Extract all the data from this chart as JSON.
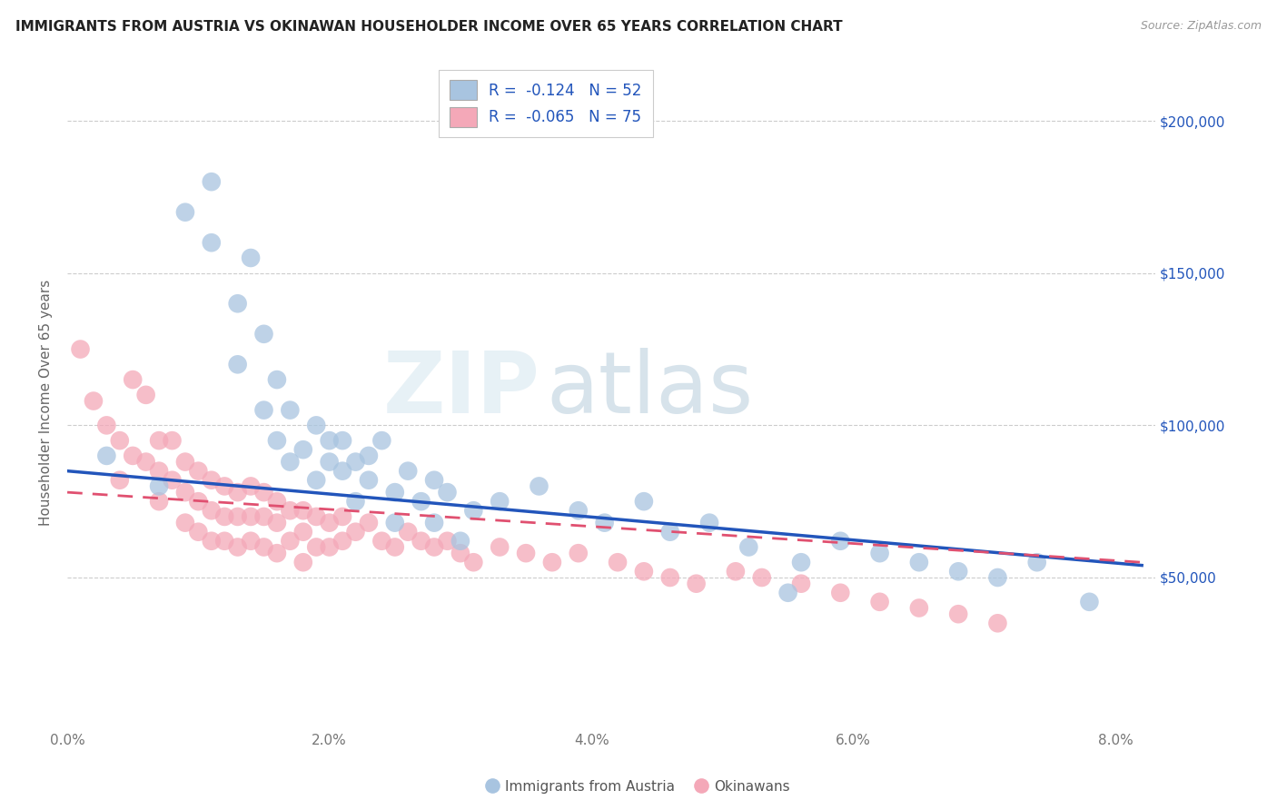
{
  "title": "IMMIGRANTS FROM AUSTRIA VS OKINAWAN HOUSEHOLDER INCOME OVER 65 YEARS CORRELATION CHART",
  "source": "Source: ZipAtlas.com",
  "ylabel": "Householder Income Over 65 years",
  "legend_label1": "R =  -0.124   N = 52",
  "legend_label2": "R =  -0.065   N = 75",
  "legend_name1": "Immigrants from Austria",
  "legend_name2": "Okinawans",
  "color1": "#a8c4e0",
  "color2": "#f4a8b8",
  "line_color1": "#2255bb",
  "line_color2": "#e05070",
  "y_ticks": [
    50000,
    100000,
    150000,
    200000
  ],
  "y_tick_labels": [
    "$50,000",
    "$100,000",
    "$150,000",
    "$200,000"
  ],
  "ylim": [
    0,
    215000
  ],
  "xlim": [
    0.0,
    0.083
  ],
  "background_color": "#ffffff",
  "watermark_zip": "ZIP",
  "watermark_atlas": "atlas",
  "blue_scatter_x": [
    0.003,
    0.007,
    0.009,
    0.011,
    0.011,
    0.013,
    0.013,
    0.014,
    0.015,
    0.015,
    0.016,
    0.016,
    0.017,
    0.017,
    0.018,
    0.019,
    0.019,
    0.02,
    0.02,
    0.021,
    0.021,
    0.022,
    0.022,
    0.023,
    0.023,
    0.024,
    0.025,
    0.025,
    0.026,
    0.027,
    0.028,
    0.028,
    0.029,
    0.03,
    0.031,
    0.033,
    0.036,
    0.039,
    0.041,
    0.044,
    0.046,
    0.049,
    0.052,
    0.055,
    0.056,
    0.059,
    0.062,
    0.065,
    0.068,
    0.071,
    0.074,
    0.078
  ],
  "blue_scatter_y": [
    90000,
    80000,
    170000,
    180000,
    160000,
    140000,
    120000,
    155000,
    105000,
    130000,
    115000,
    95000,
    88000,
    105000,
    92000,
    82000,
    100000,
    95000,
    88000,
    85000,
    95000,
    88000,
    75000,
    90000,
    82000,
    95000,
    78000,
    68000,
    85000,
    75000,
    82000,
    68000,
    78000,
    62000,
    72000,
    75000,
    80000,
    72000,
    68000,
    75000,
    65000,
    68000,
    60000,
    45000,
    55000,
    62000,
    58000,
    55000,
    52000,
    50000,
    55000,
    42000
  ],
  "pink_scatter_x": [
    0.001,
    0.002,
    0.003,
    0.004,
    0.004,
    0.005,
    0.005,
    0.006,
    0.006,
    0.007,
    0.007,
    0.007,
    0.008,
    0.008,
    0.009,
    0.009,
    0.009,
    0.01,
    0.01,
    0.01,
    0.011,
    0.011,
    0.011,
    0.012,
    0.012,
    0.012,
    0.013,
    0.013,
    0.013,
    0.014,
    0.014,
    0.014,
    0.015,
    0.015,
    0.015,
    0.016,
    0.016,
    0.016,
    0.017,
    0.017,
    0.018,
    0.018,
    0.018,
    0.019,
    0.019,
    0.02,
    0.02,
    0.021,
    0.021,
    0.022,
    0.023,
    0.024,
    0.025,
    0.026,
    0.027,
    0.028,
    0.029,
    0.03,
    0.031,
    0.033,
    0.035,
    0.037,
    0.039,
    0.042,
    0.044,
    0.046,
    0.048,
    0.051,
    0.053,
    0.056,
    0.059,
    0.062,
    0.065,
    0.068,
    0.071
  ],
  "pink_scatter_y": [
    125000,
    108000,
    100000,
    95000,
    82000,
    115000,
    90000,
    110000,
    88000,
    95000,
    85000,
    75000,
    95000,
    82000,
    88000,
    78000,
    68000,
    85000,
    75000,
    65000,
    82000,
    72000,
    62000,
    80000,
    70000,
    62000,
    78000,
    70000,
    60000,
    80000,
    70000,
    62000,
    78000,
    70000,
    60000,
    75000,
    68000,
    58000,
    72000,
    62000,
    72000,
    65000,
    55000,
    70000,
    60000,
    68000,
    60000,
    70000,
    62000,
    65000,
    68000,
    62000,
    60000,
    65000,
    62000,
    60000,
    62000,
    58000,
    55000,
    60000,
    58000,
    55000,
    58000,
    55000,
    52000,
    50000,
    48000,
    52000,
    50000,
    48000,
    45000,
    42000,
    40000,
    38000,
    35000
  ],
  "blue_line_x0": 0.0,
  "blue_line_y0": 85000,
  "blue_line_x1": 0.082,
  "blue_line_y1": 54000,
  "pink_line_x0": 0.0,
  "pink_line_y0": 78000,
  "pink_line_x1": 0.082,
  "pink_line_y1": 55000
}
